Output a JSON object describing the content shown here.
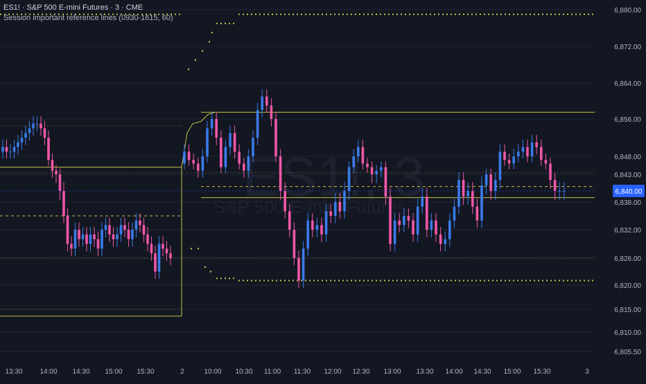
{
  "header": {
    "symbol": "ES1!",
    "name": "S&P 500 E-mini Futures",
    "interval": "3",
    "exchange": "CME",
    "indicator": "Session important reference lines (0930-1615, 60)"
  },
  "watermark": {
    "symbol": "ES1!, 3",
    "name": "S&P 500 E-mini Futures"
  },
  "colors": {
    "background": "#131722",
    "up": "#3b7be9",
    "down": "#f057a8",
    "reference": "#c8c24a",
    "grid": "#1f2633",
    "price_badge": "#2962ff"
  },
  "chart_data": {
    "type": "candlestick",
    "price_axis": {
      "ticks": [
        "6,880.00",
        "6,872.00",
        "6,864.00",
        "6,856.00",
        "6,848.00",
        "6,843.00",
        "6,838.00",
        "6,832.00",
        "6,826.00",
        "6,820.00",
        "6,815.00",
        "6,810.00",
        "6,805.50"
      ],
      "tick_values": [
        6880,
        6872,
        6864,
        6856,
        6848,
        6843,
        6838,
        6832,
        6826,
        6820,
        6815,
        6810,
        6805.5
      ],
      "ylim": [
        6805.5,
        6880
      ]
    },
    "time_axis": {
      "labels": [
        "13:30",
        "14:00",
        "14:30",
        "15:00",
        "15:30",
        "2",
        "10:00",
        "10:30",
        "11:00",
        "11:30",
        "12:00",
        "12:30",
        "13:00",
        "13:30",
        "14:00",
        "14:30",
        "15:00",
        "15:30",
        "3"
      ]
    },
    "current_price": "6,840.00",
    "session1_closes": [
      6850,
      6849,
      6849,
      6850,
      6851,
      6852,
      6853,
      6854,
      6855,
      6855,
      6854,
      6852,
      6847,
      6844,
      6843,
      6840,
      6835,
      6829,
      6828,
      6832,
      6830,
      6831,
      6829,
      6831,
      6830,
      6828,
      6832,
      6833,
      6831,
      6830,
      6831,
      6833,
      6832,
      6830,
      6832,
      6834,
      6833,
      6831,
      6829,
      6827,
      6823,
      6829,
      6828,
      6827,
      6826
    ],
    "session2_closes": [
      6849,
      6847,
      6846,
      6844,
      6848,
      6854,
      6856,
      6852,
      6845,
      6850,
      6853,
      6849,
      6846,
      6844,
      6848,
      6852,
      6858,
      6861,
      6859,
      6856,
      6848,
      6840,
      6836,
      6832,
      6826,
      6821,
      6828,
      6834,
      6832,
      6833,
      6831,
      6836,
      6835,
      6838,
      6836,
      6840,
      6845,
      6848,
      6850,
      6846,
      6845,
      6843,
      6844,
      6845,
      6839,
      6829,
      6834,
      6833,
      6835,
      6834,
      6831,
      6837,
      6839,
      6832,
      6834,
      6831,
      6829,
      6830,
      6834,
      6837,
      6842,
      6839,
      6840,
      6837,
      6834,
      6841,
      6843,
      6840,
      6842,
      6849,
      6847,
      6846,
      6848,
      6849,
      6850,
      6848,
      6851,
      6850,
      6847,
      6846,
      6842,
      6840,
      6840,
      6840
    ],
    "reference_levels": [
      {
        "price": 6879,
        "style": "dotted"
      },
      {
        "price": 6857.5,
        "style": "solid"
      },
      {
        "price": 6845,
        "style": "solid"
      },
      {
        "price": 6838.8,
        "style": "solid"
      },
      {
        "price": 6840.8,
        "style": "dashed"
      },
      {
        "price": 6826,
        "style": "dotted"
      },
      {
        "price": 6821,
        "style": "dotted"
      },
      {
        "price": 6814,
        "style": "solid"
      }
    ]
  }
}
